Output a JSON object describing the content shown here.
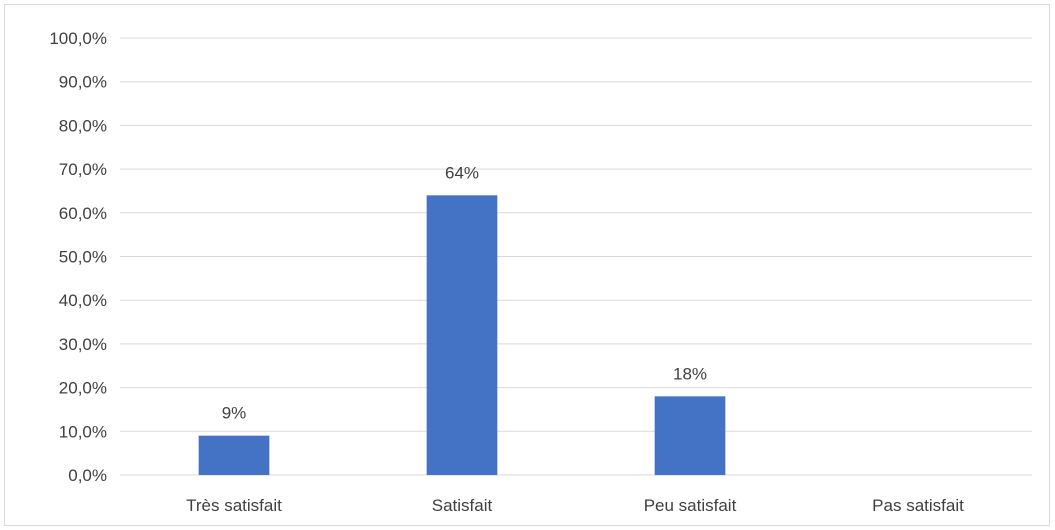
{
  "chart_data": {
    "type": "bar",
    "categories": [
      "Très satisfait",
      "Satisfait",
      "Peu satisfait",
      "Pas satisfait"
    ],
    "values": [
      9,
      64,
      18,
      0
    ],
    "data_labels": [
      "9%",
      "64%",
      "18%",
      ""
    ],
    "title": "",
    "xlabel": "",
    "ylabel": "",
    "ylim": [
      0,
      100
    ],
    "yticks": [
      0,
      10,
      20,
      30,
      40,
      50,
      60,
      70,
      80,
      90,
      100
    ],
    "ytick_labels": [
      "0,0%",
      "10,0%",
      "20,0%",
      "30,0%",
      "40,0%",
      "50,0%",
      "60,0%",
      "70,0%",
      "80,0%",
      "90,0%",
      "100,0%"
    ],
    "grid": true,
    "legend": "none",
    "colors": {
      "bar": "#4472c4",
      "grid": "#d9d9d9",
      "text": "#404040"
    }
  }
}
